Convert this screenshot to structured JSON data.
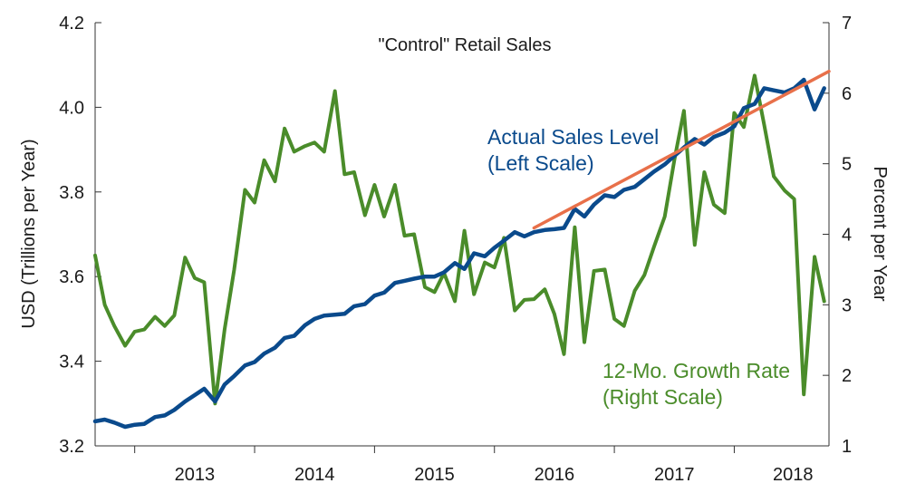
{
  "chart_data": {
    "type": "line",
    "title": "\"Control\" Retail Sales",
    "ylabel_left": "USD (Trillions per Year)",
    "ylabel_right": "Percent per Year",
    "ylim_left": [
      3.2,
      4.2
    ],
    "ylim_right": [
      1,
      7
    ],
    "yticks_left": [
      "3.2",
      "3.4",
      "3.6",
      "3.8",
      "4.0",
      "4.2"
    ],
    "yticks_right": [
      "1",
      "2",
      "3",
      "4",
      "5",
      "6",
      "7"
    ],
    "x_start": 2012.67,
    "x_end": 2018.79,
    "x_boundaries": [
      2013,
      2014,
      2015,
      2016,
      2017,
      2018
    ],
    "x_categories": [
      "2013",
      "2014",
      "2015",
      "2016",
      "2017",
      "2018"
    ],
    "colors": {
      "sales": "#0a4a8c",
      "growth": "#4a8c2a",
      "trend": "#e8704a",
      "axis": "#333333"
    },
    "annotations": {
      "sales_label_1": "Actual Sales Level",
      "sales_label_2": "(Left Scale)",
      "growth_label_1": "12-Mo. Growth Rate",
      "growth_label_2": "(Right Scale)"
    },
    "series": [
      {
        "name": "Actual Sales Level",
        "axis": "left",
        "x": [
          2012.67,
          2012.75,
          2012.83,
          2012.92,
          2013.0,
          2013.08,
          2013.17,
          2013.25,
          2013.33,
          2013.42,
          2013.5,
          2013.58,
          2013.67,
          2013.75,
          2013.83,
          2013.92,
          2014.0,
          2014.08,
          2014.17,
          2014.25,
          2014.33,
          2014.42,
          2014.5,
          2014.58,
          2014.67,
          2014.75,
          2014.83,
          2014.92,
          2015.0,
          2015.08,
          2015.17,
          2015.25,
          2015.33,
          2015.42,
          2015.5,
          2015.58,
          2015.67,
          2015.75,
          2015.83,
          2015.92,
          2016.0,
          2016.08,
          2016.17,
          2016.25,
          2016.33,
          2016.42,
          2016.5,
          2016.58,
          2016.67,
          2016.75,
          2016.83,
          2016.92,
          2017.0,
          2017.08,
          2017.17,
          2017.25,
          2017.33,
          2017.42,
          2017.5,
          2017.58,
          2017.67,
          2017.75,
          2017.83,
          2017.92,
          2018.0,
          2018.08,
          2018.17,
          2018.25,
          2018.33,
          2018.42,
          2018.5,
          2018.58,
          2018.67,
          2018.75
        ],
        "values": [
          3.258,
          3.262,
          3.255,
          3.245,
          3.25,
          3.252,
          3.268,
          3.272,
          3.285,
          3.305,
          3.32,
          3.335,
          3.305,
          3.345,
          3.365,
          3.39,
          3.398,
          3.418,
          3.432,
          3.455,
          3.46,
          3.485,
          3.5,
          3.508,
          3.51,
          3.512,
          3.53,
          3.535,
          3.555,
          3.562,
          3.585,
          3.59,
          3.595,
          3.6,
          3.6,
          3.61,
          3.632,
          3.618,
          3.655,
          3.648,
          3.668,
          3.685,
          3.705,
          3.695,
          3.705,
          3.71,
          3.712,
          3.715,
          3.76,
          3.742,
          3.77,
          3.792,
          3.788,
          3.805,
          3.812,
          3.83,
          3.848,
          3.865,
          3.885,
          3.905,
          3.925,
          3.912,
          3.93,
          3.94,
          3.955,
          3.998,
          4.008,
          4.045,
          4.04,
          4.035,
          4.045,
          4.065,
          3.995,
          4.045
        ]
      },
      {
        "name": "12-Mo. Growth Rate",
        "axis": "right",
        "x": [
          2012.67,
          2012.75,
          2012.83,
          2012.92,
          2013.0,
          2013.08,
          2013.17,
          2013.25,
          2013.33,
          2013.42,
          2013.5,
          2013.58,
          2013.67,
          2013.75,
          2013.83,
          2013.92,
          2014.0,
          2014.08,
          2014.17,
          2014.25,
          2014.33,
          2014.42,
          2014.5,
          2014.58,
          2014.67,
          2014.75,
          2014.83,
          2014.92,
          2015.0,
          2015.08,
          2015.17,
          2015.25,
          2015.33,
          2015.42,
          2015.5,
          2015.58,
          2015.67,
          2015.75,
          2015.83,
          2015.92,
          2016.0,
          2016.08,
          2016.17,
          2016.25,
          2016.33,
          2016.42,
          2016.5,
          2016.58,
          2016.67,
          2016.75,
          2016.83,
          2016.92,
          2017.0,
          2017.08,
          2017.17,
          2017.25,
          2017.33,
          2017.42,
          2017.5,
          2017.58,
          2017.67,
          2017.75,
          2017.83,
          2017.92,
          2018.0,
          2018.08,
          2018.17,
          2018.25,
          2018.33,
          2018.42,
          2018.5,
          2018.58,
          2018.67,
          2018.75
        ],
        "values": [
          3.7,
          3.0,
          2.7,
          2.42,
          2.62,
          2.65,
          2.83,
          2.7,
          2.85,
          3.67,
          3.38,
          3.32,
          1.6,
          2.65,
          3.5,
          4.63,
          4.45,
          5.05,
          4.75,
          5.5,
          5.17,
          5.25,
          5.3,
          5.17,
          6.03,
          4.85,
          4.88,
          4.27,
          4.7,
          4.25,
          4.7,
          3.98,
          4.0,
          3.25,
          3.18,
          3.45,
          3.05,
          4.05,
          3.15,
          3.6,
          3.53,
          3.95,
          2.92,
          3.07,
          3.08,
          3.22,
          2.87,
          2.3,
          4.1,
          2.47,
          3.48,
          3.5,
          2.8,
          2.7,
          3.2,
          3.42,
          3.82,
          4.25,
          5.05,
          5.75,
          3.85,
          4.88,
          4.42,
          4.3,
          5.72,
          5.52,
          6.25,
          5.55,
          4.82,
          4.62,
          4.5,
          1.73,
          3.68,
          3.05
        ]
      },
      {
        "name": "Trend",
        "axis": "left",
        "x": [
          2016.33,
          2018.79
        ],
        "values": [
          3.715,
          4.085
        ]
      }
    ]
  }
}
